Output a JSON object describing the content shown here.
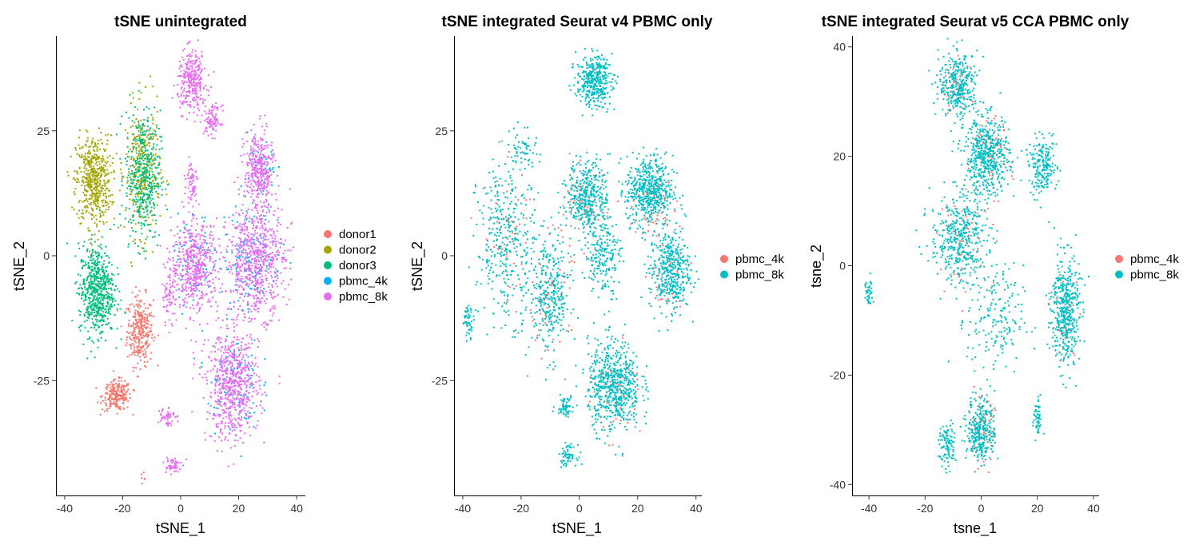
{
  "chart_data": [
    {
      "type": "scatter",
      "title": "tSNE unintegrated",
      "xlabel": "tSNE_1",
      "ylabel": "tSNE_2",
      "xlim": [
        -43,
        43
      ],
      "ylim": [
        -48,
        44
      ],
      "xticks": [
        -40,
        -20,
        0,
        20,
        40
      ],
      "xtick_labels": [
        "-40",
        "-20",
        "0",
        "20",
        "40"
      ],
      "yticks": [
        -25,
        0,
        25
      ],
      "ytick_labels": [
        "-25",
        "0",
        "25"
      ],
      "grid": false,
      "legend_position": "right",
      "series": [
        {
          "name": "donor1",
          "color": "#F8766D",
          "clusters": [
            {
              "x": -14,
              "y": -15,
              "w": 4.5,
              "h": 7,
              "n": 300
            },
            {
              "x": -22,
              "y": -28,
              "w": 5,
              "h": 3,
              "n": 220
            },
            {
              "x": -13,
              "y": -44,
              "w": 1.2,
              "h": 0.8,
              "n": 6
            }
          ]
        },
        {
          "name": "donor2",
          "color": "#A3A500",
          "clusters": [
            {
              "x": -30,
              "y": 15,
              "w": 6,
              "h": 9,
              "n": 520
            },
            {
              "x": -13,
              "y": 17,
              "w": 6,
              "h": 13,
              "n": 320
            }
          ]
        },
        {
          "name": "donor3",
          "color": "#00BF7D",
          "clusters": [
            {
              "x": -13,
              "y": 16,
              "w": 6,
              "h": 13,
              "n": 420
            },
            {
              "x": -29,
              "y": -7,
              "w": 6,
              "h": 9,
              "n": 620
            }
          ]
        },
        {
          "name": "pbmc_4k",
          "color": "#00B0F6",
          "clusters": [
            {
              "x": 25,
              "y": 0,
              "w": 10,
              "h": 11,
              "n": 140
            },
            {
              "x": 18,
              "y": -25,
              "w": 9,
              "h": 10,
              "n": 100
            },
            {
              "x": 5,
              "y": -1,
              "w": 8,
              "h": 9,
              "n": 70
            },
            {
              "x": 28,
              "y": 17,
              "w": 5,
              "h": 7,
              "n": 40
            }
          ]
        },
        {
          "name": "pbmc_8k",
          "color": "#E76BF3",
          "clusters": [
            {
              "x": 4,
              "y": 35,
              "w": 5,
              "h": 6,
              "n": 300
            },
            {
              "x": 11,
              "y": 27,
              "w": 3,
              "h": 3,
              "n": 90
            },
            {
              "x": 27,
              "y": 17,
              "w": 5,
              "h": 8,
              "n": 340
            },
            {
              "x": 26,
              "y": -1,
              "w": 10,
              "h": 11,
              "n": 650
            },
            {
              "x": 5,
              "y": -2,
              "w": 8,
              "h": 9,
              "n": 500
            },
            {
              "x": -4,
              "y": -8,
              "w": 2.5,
              "h": 6,
              "n": 70
            },
            {
              "x": 18,
              "y": -26,
              "w": 9,
              "h": 11,
              "n": 650
            },
            {
              "x": 4,
              "y": 15,
              "w": 2,
              "h": 4,
              "n": 60
            },
            {
              "x": -5,
              "y": -32,
              "w": 3,
              "h": 2,
              "n": 50
            },
            {
              "x": -3,
              "y": -42,
              "w": 3,
              "h": 2,
              "n": 50
            }
          ]
        }
      ]
    },
    {
      "type": "scatter",
      "title": "tSNE integrated Seurat v4 PBMC only",
      "xlabel": "tSNE_1",
      "ylabel": "tSNE_2",
      "xlim": [
        -43,
        42
      ],
      "ylim": [
        -48,
        44
      ],
      "xticks": [
        -40,
        -20,
        0,
        20,
        40
      ],
      "xtick_labels": [
        "-40",
        "-20",
        "0",
        "20",
        "40"
      ],
      "yticks": [
        -25,
        0,
        25
      ],
      "ytick_labels": [
        "-25",
        "0",
        "25"
      ],
      "grid": false,
      "legend_position": "right",
      "series": [
        {
          "name": "pbmc_4k",
          "color": "#F8766D",
          "clusters": [
            {
              "x": 25,
              "y": 10,
              "w": 8,
              "h": 7,
              "n": 70
            },
            {
              "x": 3,
              "y": 10,
              "w": 8,
              "h": 7,
              "n": 70
            },
            {
              "x": -10,
              "y": -8,
              "w": 7,
              "h": 12,
              "n": 60
            },
            {
              "x": 13,
              "y": -27,
              "w": 8,
              "h": 9,
              "n": 60
            },
            {
              "x": 30,
              "y": -5,
              "w": 6,
              "h": 8,
              "n": 40
            },
            {
              "x": -25,
              "y": 5,
              "w": 8,
              "h": 14,
              "n": 50
            }
          ]
        },
        {
          "name": "pbmc_8k",
          "color": "#00BFC4",
          "clusters": [
            {
              "x": 5,
              "y": 35,
              "w": 6,
              "h": 5,
              "n": 380
            },
            {
              "x": 3,
              "y": 12,
              "w": 7,
              "h": 7,
              "n": 380
            },
            {
              "x": 24,
              "y": 13,
              "w": 8,
              "h": 7,
              "n": 520
            },
            {
              "x": 31,
              "y": -3,
              "w": 7,
              "h": 8,
              "n": 420
            },
            {
              "x": 12,
              "y": -26,
              "w": 9,
              "h": 9,
              "n": 620
            },
            {
              "x": -5,
              "y": -30,
              "w": 3,
              "h": 2,
              "n": 60
            },
            {
              "x": -4,
              "y": -40,
              "w": 3,
              "h": 2,
              "n": 60
            },
            {
              "x": -10,
              "y": -8,
              "w": 7,
              "h": 12,
              "n": 320
            },
            {
              "x": -25,
              "y": 3,
              "w": 10,
              "h": 16,
              "n": 360
            },
            {
              "x": -38,
              "y": -13,
              "w": 2,
              "h": 3,
              "n": 50
            },
            {
              "x": -19,
              "y": 22,
              "w": 5,
              "h": 4,
              "n": 50
            },
            {
              "x": 8,
              "y": 0,
              "w": 6,
              "h": 8,
              "n": 200
            }
          ]
        }
      ]
    },
    {
      "type": "scatter",
      "title": "tSNE integrated Seurat v5 CCA PBMC only",
      "xlabel": "tsne_1",
      "ylabel": "tsne_2",
      "xlim": [
        -46,
        42
      ],
      "ylim": [
        -42,
        42
      ],
      "xticks": [
        -40,
        -20,
        0,
        20,
        40
      ],
      "xtick_labels": [
        "-40",
        "-20",
        "0",
        "20",
        "40"
      ],
      "yticks": [
        -40,
        -20,
        0,
        20,
        40
      ],
      "ytick_labels": [
        "-40",
        "-20",
        "0",
        "20",
        "40"
      ],
      "grid": false,
      "legend_position": "right",
      "series": [
        {
          "name": "pbmc_4k",
          "color": "#F8766D",
          "clusters": [
            {
              "x": -10,
              "y": 33,
              "w": 5,
              "h": 5,
              "n": 40
            },
            {
              "x": 3,
              "y": 20,
              "w": 8,
              "h": 7,
              "n": 60
            },
            {
              "x": 0,
              "y": -30,
              "w": 5,
              "h": 6,
              "n": 60
            },
            {
              "x": -5,
              "y": 5,
              "w": 10,
              "h": 8,
              "n": 50
            },
            {
              "x": 30,
              "y": -10,
              "w": 5,
              "h": 8,
              "n": 30
            }
          ]
        },
        {
          "name": "pbmc_8k",
          "color": "#00BFC4",
          "clusters": [
            {
              "x": -8,
              "y": 33,
              "w": 7,
              "h": 6,
              "n": 330
            },
            {
              "x": 2,
              "y": 20,
              "w": 8,
              "h": 7,
              "n": 520
            },
            {
              "x": 22,
              "y": 18,
              "w": 5,
              "h": 5,
              "n": 200
            },
            {
              "x": 30,
              "y": -8,
              "w": 5,
              "h": 10,
              "n": 460
            },
            {
              "x": -8,
              "y": 5,
              "w": 10,
              "h": 8,
              "n": 420
            },
            {
              "x": 0,
              "y": -30,
              "w": 5,
              "h": 6,
              "n": 300
            },
            {
              "x": -12,
              "y": -33,
              "w": 3,
              "h": 4,
              "n": 100
            },
            {
              "x": 20,
              "y": -28,
              "w": 1.5,
              "h": 4,
              "n": 50
            },
            {
              "x": -40,
              "y": -5,
              "w": 1.5,
              "h": 3,
              "n": 40
            },
            {
              "x": 5,
              "y": -10,
              "w": 10,
              "h": 10,
              "n": 180
            }
          ]
        }
      ]
    }
  ]
}
